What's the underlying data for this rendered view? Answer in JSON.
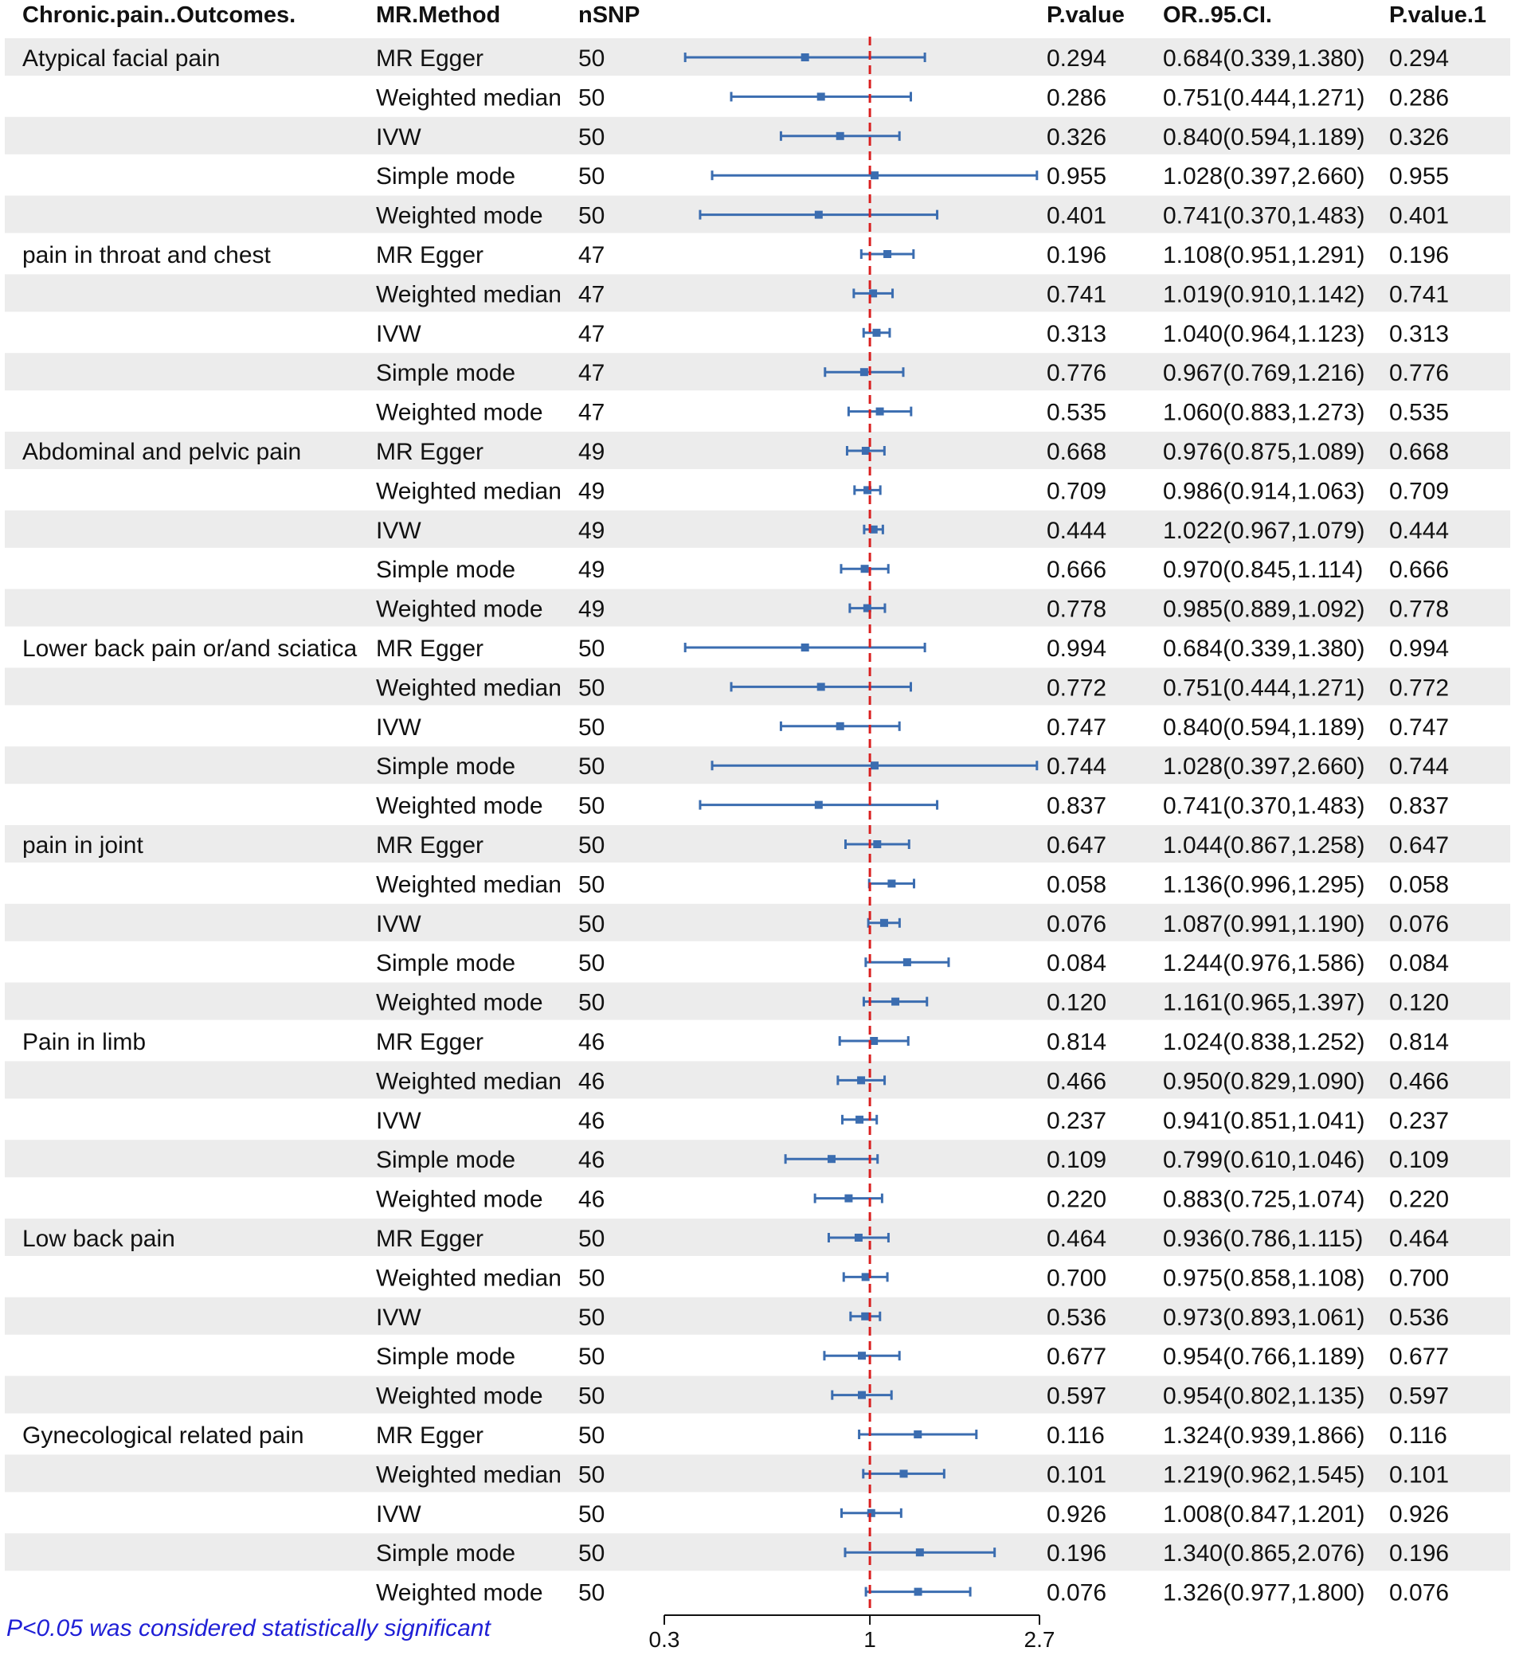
{
  "headers": {
    "outcome": "Chronic.pain..Outcomes.",
    "method": "MR.Method",
    "nsnp": "nSNP",
    "pvalue": "P.value",
    "or_ci": "OR..95.CI.",
    "pvalue1": "P.value.1"
  },
  "footnote": "P<0.05 was considered statistically significant",
  "colors": {
    "marker": "#3b6db0",
    "refline": "#d92020",
    "band": "#ececec",
    "note": "#1f1fd6"
  },
  "chart_data": {
    "type": "forest",
    "x_scale": "log",
    "xlim": [
      0.3,
      2.7
    ],
    "xticks": [
      "0.3",
      "1",
      "2.7"
    ],
    "reference_line": 1,
    "groups": [
      {
        "outcome": "Atypical facial pain",
        "rows": [
          {
            "method": "MR Egger",
            "nsnp": "50",
            "p": "0.294",
            "or_text": "0.684(0.339,1.380)",
            "p1": "0.294",
            "or": 0.684,
            "lo": 0.339,
            "hi": 1.38
          },
          {
            "method": "Weighted median",
            "nsnp": "50",
            "p": "0.286",
            "or_text": "0.751(0.444,1.271)",
            "p1": "0.286",
            "or": 0.751,
            "lo": 0.444,
            "hi": 1.271
          },
          {
            "method": "IVW",
            "nsnp": "50",
            "p": "0.326",
            "or_text": "0.840(0.594,1.189)",
            "p1": "0.326",
            "or": 0.84,
            "lo": 0.594,
            "hi": 1.189
          },
          {
            "method": "Simple mode",
            "nsnp": "50",
            "p": "0.955",
            "or_text": "1.028(0.397,2.660)",
            "p1": "0.955",
            "or": 1.028,
            "lo": 0.397,
            "hi": 2.66
          },
          {
            "method": "Weighted mode",
            "nsnp": "50",
            "p": "0.401",
            "or_text": "0.741(0.370,1.483)",
            "p1": "0.401",
            "or": 0.741,
            "lo": 0.37,
            "hi": 1.483
          }
        ]
      },
      {
        "outcome": "pain in throat and chest",
        "rows": [
          {
            "method": "MR Egger",
            "nsnp": "47",
            "p": "0.196",
            "or_text": "1.108(0.951,1.291)",
            "p1": "0.196",
            "or": 1.108,
            "lo": 0.951,
            "hi": 1.291
          },
          {
            "method": "Weighted median",
            "nsnp": "47",
            "p": "0.741",
            "or_text": "1.019(0.910,1.142)",
            "p1": "0.741",
            "or": 1.019,
            "lo": 0.91,
            "hi": 1.142
          },
          {
            "method": "IVW",
            "nsnp": "47",
            "p": "0.313",
            "or_text": "1.040(0.964,1.123)",
            "p1": "0.313",
            "or": 1.04,
            "lo": 0.964,
            "hi": 1.123
          },
          {
            "method": "Simple mode",
            "nsnp": "47",
            "p": "0.776",
            "or_text": "0.967(0.769,1.216)",
            "p1": "0.776",
            "or": 0.967,
            "lo": 0.769,
            "hi": 1.216
          },
          {
            "method": "Weighted mode",
            "nsnp": "47",
            "p": "0.535",
            "or_text": "1.060(0.883,1.273)",
            "p1": "0.535",
            "or": 1.06,
            "lo": 0.883,
            "hi": 1.273
          }
        ]
      },
      {
        "outcome": "Abdominal and pelvic pain",
        "rows": [
          {
            "method": "MR Egger",
            "nsnp": "49",
            "p": "0.668",
            "or_text": "0.976(0.875,1.089)",
            "p1": "0.668",
            "or": 0.976,
            "lo": 0.875,
            "hi": 1.089
          },
          {
            "method": "Weighted median",
            "nsnp": "49",
            "p": "0.709",
            "or_text": "0.986(0.914,1.063)",
            "p1": "0.709",
            "or": 0.986,
            "lo": 0.914,
            "hi": 1.063
          },
          {
            "method": "IVW",
            "nsnp": "49",
            "p": "0.444",
            "or_text": "1.022(0.967,1.079)",
            "p1": "0.444",
            "or": 1.022,
            "lo": 0.967,
            "hi": 1.079
          },
          {
            "method": "Simple mode",
            "nsnp": "49",
            "p": "0.666",
            "or_text": "0.970(0.845,1.114)",
            "p1": "0.666",
            "or": 0.97,
            "lo": 0.845,
            "hi": 1.114
          },
          {
            "method": "Weighted mode",
            "nsnp": "49",
            "p": "0.778",
            "or_text": "0.985(0.889,1.092)",
            "p1": "0.778",
            "or": 0.985,
            "lo": 0.889,
            "hi": 1.092
          }
        ]
      },
      {
        "outcome": "Lower back pain or/and sciatica",
        "rows": [
          {
            "method": "MR Egger",
            "nsnp": "50",
            "p": "0.994",
            "or_text": "0.684(0.339,1.380)",
            "p1": "0.994",
            "or": 0.684,
            "lo": 0.339,
            "hi": 1.38
          },
          {
            "method": "Weighted median",
            "nsnp": "50",
            "p": "0.772",
            "or_text": "0.751(0.444,1.271)",
            "p1": "0.772",
            "or": 0.751,
            "lo": 0.444,
            "hi": 1.271
          },
          {
            "method": "IVW",
            "nsnp": "50",
            "p": "0.747",
            "or_text": "0.840(0.594,1.189)",
            "p1": "0.747",
            "or": 0.84,
            "lo": 0.594,
            "hi": 1.189
          },
          {
            "method": "Simple mode",
            "nsnp": "50",
            "p": "0.744",
            "or_text": "1.028(0.397,2.660)",
            "p1": "0.744",
            "or": 1.028,
            "lo": 0.397,
            "hi": 2.66
          },
          {
            "method": "Weighted mode",
            "nsnp": "50",
            "p": "0.837",
            "or_text": "0.741(0.370,1.483)",
            "p1": "0.837",
            "or": 0.741,
            "lo": 0.37,
            "hi": 1.483
          }
        ]
      },
      {
        "outcome": "pain in joint",
        "rows": [
          {
            "method": "MR Egger",
            "nsnp": "50",
            "p": "0.647",
            "or_text": "1.044(0.867,1.258)",
            "p1": "0.647",
            "or": 1.044,
            "lo": 0.867,
            "hi": 1.258
          },
          {
            "method": "Weighted median",
            "nsnp": "50",
            "p": "0.058",
            "or_text": "1.136(0.996,1.295)",
            "p1": "0.058",
            "or": 1.136,
            "lo": 0.996,
            "hi": 1.295
          },
          {
            "method": "IVW",
            "nsnp": "50",
            "p": "0.076",
            "or_text": "1.087(0.991,1.190)",
            "p1": "0.076",
            "or": 1.087,
            "lo": 0.991,
            "hi": 1.19
          },
          {
            "method": "Simple mode",
            "nsnp": "50",
            "p": "0.084",
            "or_text": "1.244(0.976,1.586)",
            "p1": "0.084",
            "or": 1.244,
            "lo": 0.976,
            "hi": 1.586
          },
          {
            "method": "Weighted mode",
            "nsnp": "50",
            "p": "0.120",
            "or_text": "1.161(0.965,1.397)",
            "p1": "0.120",
            "or": 1.161,
            "lo": 0.965,
            "hi": 1.397
          }
        ]
      },
      {
        "outcome": "Pain in limb",
        "rows": [
          {
            "method": "MR Egger",
            "nsnp": "46",
            "p": "0.814",
            "or_text": "1.024(0.838,1.252)",
            "p1": "0.814",
            "or": 1.024,
            "lo": 0.838,
            "hi": 1.252
          },
          {
            "method": "Weighted median",
            "nsnp": "46",
            "p": "0.466",
            "or_text": "0.950(0.829,1.090)",
            "p1": "0.466",
            "or": 0.95,
            "lo": 0.829,
            "hi": 1.09
          },
          {
            "method": "IVW",
            "nsnp": "46",
            "p": "0.237",
            "or_text": "0.941(0.851,1.041)",
            "p1": "0.237",
            "or": 0.941,
            "lo": 0.851,
            "hi": 1.041
          },
          {
            "method": "Simple mode",
            "nsnp": "46",
            "p": "0.109",
            "or_text": "0.799(0.610,1.046)",
            "p1": "0.109",
            "or": 0.799,
            "lo": 0.61,
            "hi": 1.046
          },
          {
            "method": "Weighted mode",
            "nsnp": "46",
            "p": "0.220",
            "or_text": "0.883(0.725,1.074)",
            "p1": "0.220",
            "or": 0.883,
            "lo": 0.725,
            "hi": 1.074
          }
        ]
      },
      {
        "outcome": "Low back pain",
        "rows": [
          {
            "method": "MR Egger",
            "nsnp": "50",
            "p": "0.464",
            "or_text": "0.936(0.786,1.115)",
            "p1": "0.464",
            "or": 0.936,
            "lo": 0.786,
            "hi": 1.115
          },
          {
            "method": "Weighted median",
            "nsnp": "50",
            "p": "0.700",
            "or_text": "0.975(0.858,1.108)",
            "p1": "0.700",
            "or": 0.975,
            "lo": 0.858,
            "hi": 1.108
          },
          {
            "method": "IVW",
            "nsnp": "50",
            "p": "0.536",
            "or_text": "0.973(0.893,1.061)",
            "p1": "0.536",
            "or": 0.973,
            "lo": 0.893,
            "hi": 1.061
          },
          {
            "method": "Simple mode",
            "nsnp": "50",
            "p": "0.677",
            "or_text": "0.954(0.766,1.189)",
            "p1": "0.677",
            "or": 0.954,
            "lo": 0.766,
            "hi": 1.189
          },
          {
            "method": "Weighted mode",
            "nsnp": "50",
            "p": "0.597",
            "or_text": "0.954(0.802,1.135)",
            "p1": "0.597",
            "or": 0.954,
            "lo": 0.802,
            "hi": 1.135
          }
        ]
      },
      {
        "outcome": "Gynecological related pain",
        "rows": [
          {
            "method": "MR Egger",
            "nsnp": "50",
            "p": "0.116",
            "or_text": "1.324(0.939,1.866)",
            "p1": "0.116",
            "or": 1.324,
            "lo": 0.939,
            "hi": 1.866
          },
          {
            "method": "Weighted median",
            "nsnp": "50",
            "p": "0.101",
            "or_text": "1.219(0.962,1.545)",
            "p1": "0.101",
            "or": 1.219,
            "lo": 0.962,
            "hi": 1.545
          },
          {
            "method": "IVW",
            "nsnp": "50",
            "p": "0.926",
            "or_text": "1.008(0.847,1.201)",
            "p1": "0.926",
            "or": 1.008,
            "lo": 0.847,
            "hi": 1.201
          },
          {
            "method": "Simple mode",
            "nsnp": "50",
            "p": "0.196",
            "or_text": "1.340(0.865,2.076)",
            "p1": "0.196",
            "or": 1.34,
            "lo": 0.865,
            "hi": 2.076
          },
          {
            "method": "Weighted mode",
            "nsnp": "50",
            "p": "0.076",
            "or_text": "1.326(0.977,1.800)",
            "p1": "0.076",
            "or": 1.326,
            "lo": 0.977,
            "hi": 1.8
          }
        ]
      }
    ]
  }
}
